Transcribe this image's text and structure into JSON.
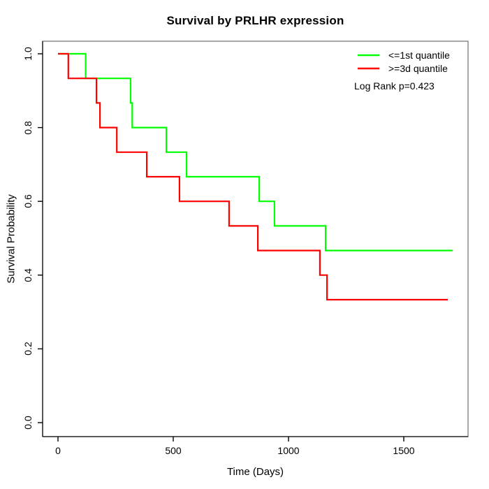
{
  "title": "Survival by PRLHR expression",
  "x_axis": {
    "label": "Time (Days)",
    "ticks": [
      0,
      500,
      1000,
      1500
    ]
  },
  "y_axis": {
    "label": "Survival Probability",
    "ticks": [
      "0.0",
      "0.2",
      "0.4",
      "0.6",
      "0.8",
      "1.0"
    ]
  },
  "legend": [
    {
      "label": "<=1st quantile",
      "color": "#00ff00"
    },
    {
      "label": ">=3d quantile",
      "color": "#ff0000"
    }
  ],
  "annotation": "Log Rank p=0.423",
  "chart_data": {
    "type": "line",
    "subtype": "kaplan-meier-step",
    "title": "Survival by PRLHR expression",
    "xlabel": "Time (Days)",
    "ylabel": "Survival Probability",
    "xlim": [
      -67,
      1780
    ],
    "ylim": [
      -0.04,
      1.04
    ],
    "x_ticks": [
      0,
      500,
      1000,
      1500
    ],
    "y_ticks": [
      0.0,
      0.2,
      0.4,
      0.6,
      0.8,
      1.0
    ],
    "grid": false,
    "legend_position": "top-right",
    "p_value_text": "Log Rank p=0.423",
    "series": [
      {
        "name": "<=1st quantile",
        "color": "#00ff00",
        "points": [
          [
            0,
            1.0
          ],
          [
            120,
            1.0
          ],
          [
            120,
            0.9333
          ],
          [
            315,
            0.9333
          ],
          [
            315,
            0.8667
          ],
          [
            322,
            0.8667
          ],
          [
            322,
            0.8
          ],
          [
            470,
            0.8
          ],
          [
            470,
            0.7333
          ],
          [
            558,
            0.7333
          ],
          [
            558,
            0.6667
          ],
          [
            873,
            0.6667
          ],
          [
            873,
            0.6
          ],
          [
            939,
            0.6
          ],
          [
            939,
            0.5333
          ],
          [
            1161,
            0.5333
          ],
          [
            1161,
            0.4667
          ],
          [
            1712,
            0.4667
          ]
        ]
      },
      {
        "name": ">=3d quantile",
        "color": "#ff0000",
        "points": [
          [
            0,
            1.0
          ],
          [
            45,
            1.0
          ],
          [
            45,
            0.9333
          ],
          [
            167,
            0.9333
          ],
          [
            167,
            0.8667
          ],
          [
            182,
            0.8667
          ],
          [
            182,
            0.8
          ],
          [
            255,
            0.8
          ],
          [
            255,
            0.7333
          ],
          [
            385,
            0.7333
          ],
          [
            385,
            0.6667
          ],
          [
            527,
            0.6667
          ],
          [
            527,
            0.6
          ],
          [
            742,
            0.6
          ],
          [
            742,
            0.5333
          ],
          [
            867,
            0.5333
          ],
          [
            867,
            0.4667
          ],
          [
            1136,
            0.4667
          ],
          [
            1136,
            0.4
          ],
          [
            1167,
            0.4
          ],
          [
            1167,
            0.3333
          ],
          [
            1691,
            0.3333
          ]
        ]
      }
    ]
  }
}
